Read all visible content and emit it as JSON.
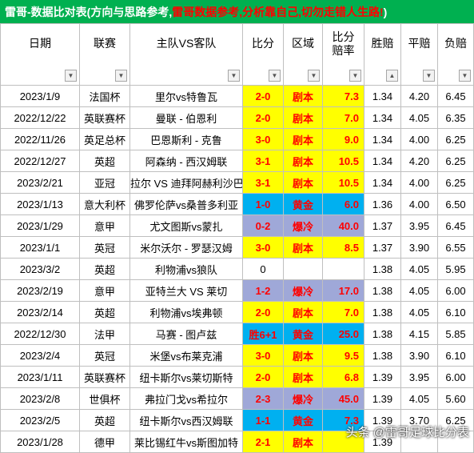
{
  "banner": {
    "part1": "雷哥-数据比对表(方向与思路参考,",
    "part2": "雷哥数据参考,分析靠自己,切勿走错人生路!",
    "part3": ")"
  },
  "headers": {
    "date": "日期",
    "league": "联赛",
    "match": "主队VS客队",
    "score": "比分",
    "zone": "区域",
    "rate1": "比分",
    "rate2": "赔率",
    "win": "胜赔",
    "draw": "平赔",
    "loss": "负赔"
  },
  "rows": [
    {
      "date": "2023/1/9",
      "league": "法国杯",
      "match": "里尔vs特鲁瓦",
      "score": "2-0",
      "zone": "剧本",
      "rate": "7.3",
      "win": "1.34",
      "draw": "4.20",
      "loss": "6.45",
      "color": "yellow"
    },
    {
      "date": "2022/12/22",
      "league": "英联赛杯",
      "match": "曼联 - 伯恩利",
      "score": "2-0",
      "zone": "剧本",
      "rate": "7.0",
      "win": "1.34",
      "draw": "4.05",
      "loss": "6.35",
      "color": "yellow"
    },
    {
      "date": "2022/11/26",
      "league": "英足总杯",
      "match": "巴恩斯利 - 克鲁",
      "score": "3-0",
      "zone": "剧本",
      "rate": "9.0",
      "win": "1.34",
      "draw": "4.00",
      "loss": "6.25",
      "color": "yellow"
    },
    {
      "date": "2022/12/27",
      "league": "英超",
      "match": "阿森纳 - 西汉姆联",
      "score": "3-1",
      "zone": "剧本",
      "rate": "10.5",
      "win": "1.34",
      "draw": "4.20",
      "loss": "6.25",
      "color": "yellow"
    },
    {
      "date": "2023/2/21",
      "league": "亚冠",
      "match": "拉尔 VS 迪拜阿赫利沙巴",
      "score": "3-1",
      "zone": "剧本",
      "rate": "10.5",
      "win": "1.34",
      "draw": "4.00",
      "loss": "6.25",
      "color": "yellow"
    },
    {
      "date": "2023/1/13",
      "league": "意大利杯",
      "match": "佛罗伦萨vs桑普多利亚",
      "score": "1-0",
      "zone": "黄金",
      "rate": "6.0",
      "win": "1.36",
      "draw": "4.00",
      "loss": "6.50",
      "color": "blue"
    },
    {
      "date": "2023/1/29",
      "league": "意甲",
      "match": "尤文图斯vs蒙扎",
      "score": "0-2",
      "zone": "爆冷",
      "rate": "40.0",
      "win": "1.37",
      "draw": "3.95",
      "loss": "6.45",
      "color": "gray"
    },
    {
      "date": "2023/1/1",
      "league": "英冠",
      "match": "米尔沃尔 - 罗瑟汉姆",
      "score": "3-0",
      "zone": "剧本",
      "rate": "8.5",
      "win": "1.37",
      "draw": "3.90",
      "loss": "6.55",
      "color": "yellow"
    },
    {
      "date": "2023/3/2",
      "league": "英超",
      "match": "利物浦vs狼队",
      "score": "0",
      "zone": "",
      "rate": "",
      "win": "1.38",
      "draw": "4.05",
      "loss": "5.95",
      "color": "none"
    },
    {
      "date": "2023/2/19",
      "league": "意甲",
      "match": "亚特兰大 VS 莱切",
      "score": "1-2",
      "zone": "爆冷",
      "rate": "17.0",
      "win": "1.38",
      "draw": "4.05",
      "loss": "6.00",
      "color": "gray"
    },
    {
      "date": "2023/2/14",
      "league": "英超",
      "match": "利物浦vs埃弗顿",
      "score": "2-0",
      "zone": "剧本",
      "rate": "7.0",
      "win": "1.38",
      "draw": "4.05",
      "loss": "6.10",
      "color": "yellow"
    },
    {
      "date": "2022/12/30",
      "league": "法甲",
      "match": "马赛 - 图卢兹",
      "score": "胜6+1",
      "zone": "黄金",
      "rate": "25.0",
      "win": "1.38",
      "draw": "4.15",
      "loss": "5.85",
      "color": "blue"
    },
    {
      "date": "2023/2/4",
      "league": "英冠",
      "match": "米堡vs布莱克浦",
      "score": "3-0",
      "zone": "剧本",
      "rate": "9.5",
      "win": "1.38",
      "draw": "3.90",
      "loss": "6.10",
      "color": "yellow"
    },
    {
      "date": "2023/1/11",
      "league": "英联赛杯",
      "match": "纽卡斯尔vs莱切斯特",
      "score": "2-0",
      "zone": "剧本",
      "rate": "6.8",
      "win": "1.39",
      "draw": "3.95",
      "loss": "6.00",
      "color": "yellow"
    },
    {
      "date": "2023/2/8",
      "league": "世俱杯",
      "match": "弗拉门戈vs希拉尔",
      "score": "2-3",
      "zone": "爆冷",
      "rate": "45.0",
      "win": "1.39",
      "draw": "4.05",
      "loss": "5.60",
      "color": "gray"
    },
    {
      "date": "2023/2/5",
      "league": "英超",
      "match": "纽卡斯尔vs西汉姆联",
      "score": "1-1",
      "zone": "黄金",
      "rate": "7.3",
      "win": "1.39",
      "draw": "3.70",
      "loss": "6.25",
      "color": "blue"
    },
    {
      "date": "2023/1/28",
      "league": "德甲",
      "match": "莱比锡红牛vs斯图加特",
      "score": "2-1",
      "zone": "剧本",
      "rate": "",
      "win": "1.39",
      "draw": "",
      "loss": "",
      "color": "yellow"
    }
  ],
  "watermark": "头条 @雷哥足球比分表",
  "icons": {
    "dropdown": "dropdown-arrow-icon",
    "sort": "sort-icon"
  }
}
